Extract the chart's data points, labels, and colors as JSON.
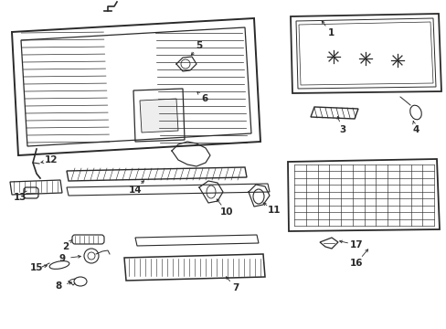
{
  "background_color": "#ffffff",
  "line_color": "#2a2a2a",
  "figsize": [
    4.89,
    3.6
  ],
  "dpi": 100,
  "label_fontsize": 7.5
}
